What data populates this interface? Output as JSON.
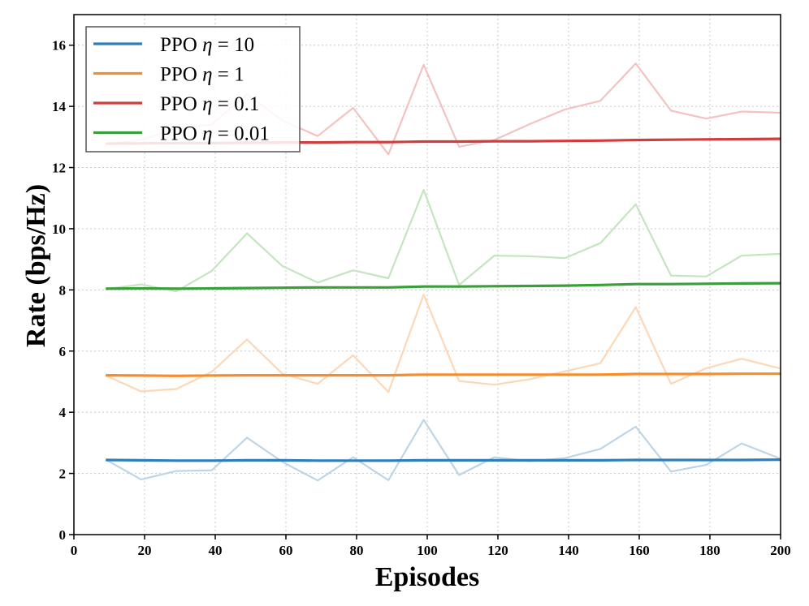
{
  "chart_data": {
    "type": "line",
    "title": "",
    "xlabel": "Episodes",
    "ylabel": "Rate (bps/Hz)",
    "xlim": [
      0,
      200
    ],
    "ylim": [
      0,
      17
    ],
    "xticks": [
      0,
      20,
      40,
      60,
      80,
      100,
      120,
      140,
      160,
      180,
      200
    ],
    "yticks": [
      0,
      2,
      4,
      6,
      8,
      10,
      12,
      14,
      16
    ],
    "xtick_labels": [
      "0",
      "20",
      "40",
      "60",
      "80",
      "100",
      "120",
      "140",
      "160",
      "180",
      "200"
    ],
    "ytick_labels": [
      "0",
      "2",
      "4",
      "6",
      "8",
      "10",
      "12",
      "14",
      "16"
    ],
    "grid": true,
    "legend_position": "top-left",
    "x": [
      9,
      19,
      29,
      39,
      49,
      59,
      69,
      79,
      89,
      99,
      109,
      119,
      129,
      139,
      149,
      159,
      169,
      179,
      189,
      200
    ],
    "series": [
      {
        "name": "PPO η = 10",
        "legend_prefix": "PPO ",
        "legend_symbol": "η",
        "legend_suffix": " = 10",
        "color": "#2f7ebc",
        "raw_color": "#bcd6e8",
        "raw": [
          2.45,
          1.8,
          2.08,
          2.1,
          3.17,
          2.38,
          1.77,
          2.53,
          1.78,
          3.75,
          1.95,
          2.53,
          2.4,
          2.5,
          2.8,
          3.53,
          2.06,
          2.28,
          2.98,
          2.48
        ],
        "smoothed": [
          2.44,
          2.43,
          2.42,
          2.42,
          2.43,
          2.43,
          2.42,
          2.42,
          2.42,
          2.43,
          2.43,
          2.43,
          2.43,
          2.43,
          2.43,
          2.44,
          2.44,
          2.44,
          2.44,
          2.45
        ]
      },
      {
        "name": "PPO η = 1",
        "legend_prefix": "PPO ",
        "legend_symbol": "η",
        "legend_suffix": " = 1",
        "color": "#f58d2c",
        "raw_color": "#fdd7b6",
        "raw": [
          5.2,
          4.68,
          4.76,
          5.32,
          6.38,
          5.26,
          4.93,
          5.86,
          4.66,
          7.85,
          5.02,
          4.9,
          5.08,
          5.34,
          5.6,
          7.44,
          4.93,
          5.44,
          5.75,
          5.43
        ],
        "smoothed": [
          5.21,
          5.2,
          5.19,
          5.2,
          5.21,
          5.21,
          5.21,
          5.21,
          5.21,
          5.23,
          5.23,
          5.23,
          5.23,
          5.23,
          5.23,
          5.25,
          5.25,
          5.25,
          5.26,
          5.26
        ]
      },
      {
        "name": "PPO η = 0.1",
        "legend_prefix": "PPO ",
        "legend_symbol": "η",
        "legend_suffix": " = 0.1",
        "color": "#d13d3c",
        "raw_color": "#f3c2c1",
        "raw": [
          12.78,
          12.9,
          13.28,
          13.4,
          14.4,
          13.54,
          13.03,
          13.95,
          12.43,
          15.36,
          12.68,
          12.9,
          13.42,
          13.9,
          14.18,
          15.4,
          13.86,
          13.6,
          13.83,
          13.79
        ],
        "smoothed": [
          12.78,
          12.79,
          12.8,
          12.8,
          12.81,
          12.82,
          12.82,
          12.83,
          12.83,
          12.85,
          12.85,
          12.86,
          12.86,
          12.87,
          12.88,
          12.9,
          12.91,
          12.92,
          12.93,
          12.94
        ]
      },
      {
        "name": "PPO η = 0.01",
        "legend_prefix": "PPO ",
        "legend_symbol": "η",
        "legend_suffix": " = 0.01",
        "color": "#3a9e3a",
        "raw_color": "#c4e5c0",
        "raw": [
          8.03,
          8.18,
          7.95,
          8.62,
          9.85,
          8.78,
          8.24,
          8.64,
          8.38,
          11.27,
          8.16,
          9.12,
          9.1,
          9.04,
          9.53,
          10.8,
          8.47,
          8.44,
          9.12,
          9.18
        ],
        "smoothed": [
          8.04,
          8.05,
          8.04,
          8.05,
          8.06,
          8.07,
          8.08,
          8.08,
          8.08,
          8.11,
          8.11,
          8.12,
          8.13,
          8.14,
          8.16,
          8.19,
          8.19,
          8.2,
          8.21,
          8.22
        ]
      }
    ]
  }
}
